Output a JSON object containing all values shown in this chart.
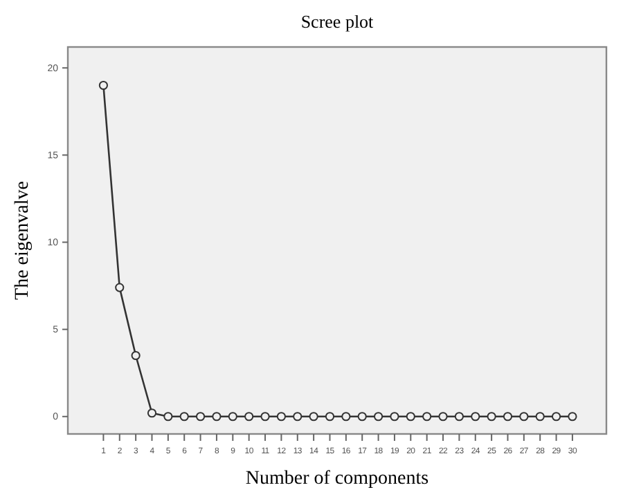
{
  "chart_data": {
    "type": "line",
    "title": "Scree plot",
    "xlabel": "Number of components",
    "ylabel": "The eigenvalve",
    "x": [
      1,
      2,
      3,
      4,
      5,
      6,
      7,
      8,
      9,
      10,
      11,
      12,
      13,
      14,
      15,
      16,
      17,
      18,
      19,
      20,
      21,
      22,
      23,
      24,
      25,
      26,
      27,
      28,
      29,
      30
    ],
    "series": [
      {
        "color": "#333333",
        "values": [
          19,
          7.4,
          3.5,
          0.2,
          0,
          0,
          0,
          0,
          0,
          0,
          0,
          0,
          0,
          0,
          0,
          0,
          0,
          0,
          0,
          0,
          0,
          0,
          0,
          0,
          0,
          0,
          0,
          0,
          0,
          0
        ]
      }
    ],
    "xlim": [
      -1.2,
      32.1
    ],
    "xticks": [
      1,
      2,
      3,
      4,
      5,
      6,
      7,
      8,
      9,
      10,
      11,
      12,
      13,
      14,
      15,
      16,
      17,
      18,
      19,
      20,
      21,
      22,
      23,
      24,
      25,
      26,
      27,
      28,
      29,
      30
    ],
    "ylim": [
      -1,
      21.2
    ],
    "yticks": [
      0,
      5,
      10,
      15,
      20
    ],
    "marker": "circle",
    "line_style": "solid",
    "grid": false
  }
}
